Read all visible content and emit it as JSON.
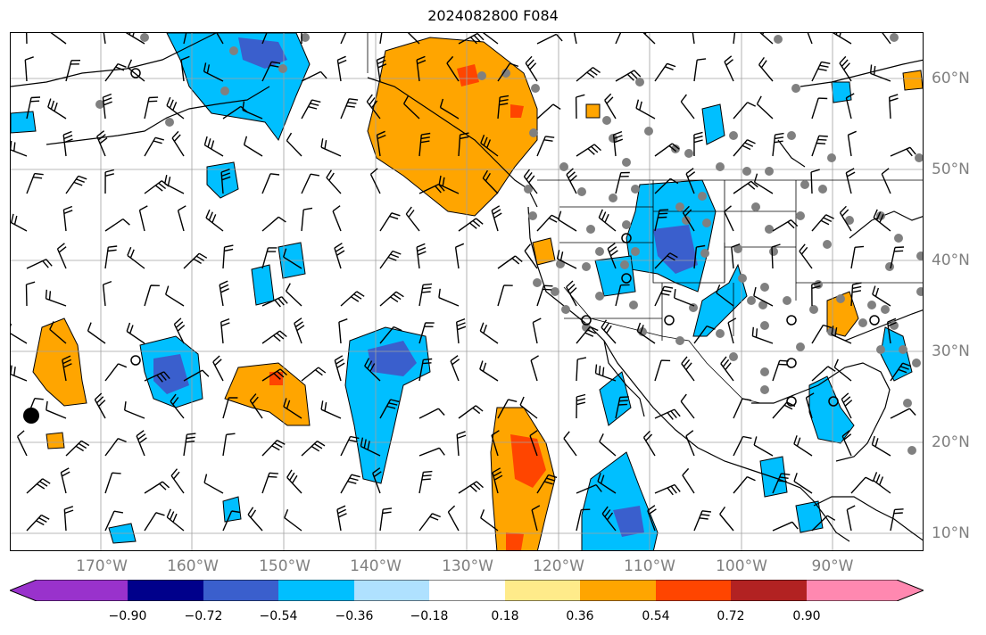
{
  "title": "2024082800 F084",
  "lon_labels": [
    "170°W",
    "160°W",
    "150°W",
    "140°W",
    "130°W",
    "120°W",
    "110°W",
    "100°W",
    "90°W"
  ],
  "lat_labels": [
    "60°N",
    "50°N",
    "40°N",
    "30°N",
    "20°N",
    "10°N"
  ],
  "colorbar": {
    "ticks": [
      "−0.90",
      "−0.72",
      "−0.54",
      "−0.36",
      "−0.18",
      "0.18",
      "0.36",
      "0.54",
      "0.72",
      "0.90"
    ],
    "colors": [
      "#9932cc",
      "#00008b",
      "#3a5fcd",
      "#00bfff",
      "#afe1ff",
      "#ffffff",
      "#ffeb8a",
      "#ffa500",
      "#ff4500",
      "#b22222",
      "#ff88b0"
    ]
  }
}
